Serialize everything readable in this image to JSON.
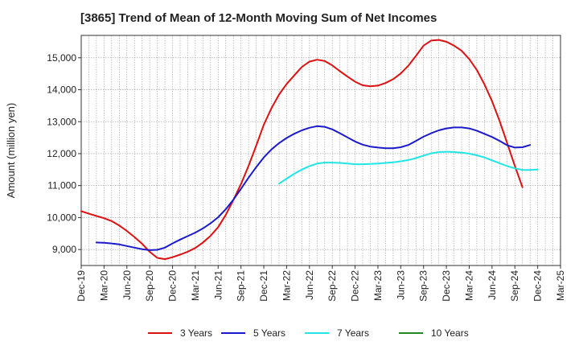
{
  "chart_data": {
    "type": "line",
    "title": "[3865]  Trend of Mean of 12-Month Moving Sum of Net Incomes",
    "ylabel": "Amount (million yen)",
    "xlabel": "",
    "ylim": [
      8500,
      15700
    ],
    "yticks": [
      9000,
      10000,
      11000,
      12000,
      13000,
      14000,
      15000
    ],
    "ytick_labels": [
      "9,000",
      "10,000",
      "11,000",
      "12,000",
      "13,000",
      "14,000",
      "15,000"
    ],
    "xticks": [
      "Dec-19",
      "Mar-20",
      "Jun-20",
      "Sep-20",
      "Dec-20",
      "Mar-21",
      "Jun-21",
      "Sep-21",
      "Dec-21",
      "Mar-22",
      "Jun-22",
      "Sep-22",
      "Dec-22",
      "Mar-23",
      "Jun-23",
      "Sep-23",
      "Dec-23",
      "Mar-24",
      "Jun-24",
      "Sep-24",
      "Dec-24",
      "Mar-25"
    ],
    "grid": true,
    "legend_position": "bottom",
    "series": [
      {
        "name": "3 Years",
        "color": "#dd1111",
        "x": [
          "2019-12",
          "2020-01",
          "2020-02",
          "2020-03",
          "2020-04",
          "2020-05",
          "2020-06",
          "2020-07",
          "2020-08",
          "2020-09",
          "2020-10",
          "2020-11",
          "2020-12",
          "2021-01",
          "2021-02",
          "2021-03",
          "2021-04",
          "2021-05",
          "2021-06",
          "2021-07",
          "2021-08",
          "2021-09",
          "2021-10",
          "2021-11",
          "2021-12",
          "2022-01",
          "2022-02",
          "2022-03",
          "2022-04",
          "2022-05",
          "2022-06",
          "2022-07",
          "2022-08",
          "2022-09",
          "2022-10",
          "2022-11",
          "2022-12",
          "2023-01",
          "2023-02",
          "2023-03",
          "2023-04",
          "2023-05",
          "2023-06",
          "2023-07",
          "2023-08",
          "2023-09",
          "2023-10",
          "2023-11",
          "2023-12",
          "2024-01",
          "2024-02",
          "2024-03",
          "2024-04",
          "2024-05",
          "2024-06",
          "2024-07",
          "2024-08",
          "2024-09",
          "2024-10",
          "2024-11",
          "2024-12"
        ],
        "values": [
          10200,
          10120,
          10050,
          9980,
          9890,
          9750,
          9580,
          9390,
          9180,
          8930,
          8740,
          8700,
          8760,
          8840,
          8930,
          9050,
          9220,
          9430,
          9700,
          10080,
          10550,
          11050,
          11620,
          12250,
          12900,
          13420,
          13850,
          14180,
          14450,
          14710,
          14880,
          14940,
          14900,
          14760,
          14580,
          14410,
          14250,
          14140,
          14110,
          14130,
          14210,
          14330,
          14510,
          14750,
          15060,
          15380,
          15540,
          15560,
          15500,
          15380,
          15220,
          14960,
          14620,
          14170,
          13640,
          13020,
          12320,
          11620,
          10950,
          null,
          null
        ]
      },
      {
        "name": "5 Years",
        "color": "#1a1acc",
        "x": [
          "2020-02",
          "2020-03",
          "2020-04",
          "2020-05",
          "2020-06",
          "2020-07",
          "2020-08",
          "2020-09",
          "2020-10",
          "2020-11",
          "2020-12",
          "2021-01",
          "2021-02",
          "2021-03",
          "2021-04",
          "2021-05",
          "2021-06",
          "2021-07",
          "2021-08",
          "2021-09",
          "2021-10",
          "2021-11",
          "2021-12",
          "2022-01",
          "2022-02",
          "2022-03",
          "2022-04",
          "2022-05",
          "2022-06",
          "2022-07",
          "2022-08",
          "2022-09",
          "2022-10",
          "2022-11",
          "2022-12",
          "2023-01",
          "2023-02",
          "2023-03",
          "2023-04",
          "2023-05",
          "2023-06",
          "2023-07",
          "2023-08",
          "2023-09",
          "2023-10",
          "2023-11",
          "2023-12",
          "2024-01",
          "2024-02",
          "2024-03",
          "2024-04",
          "2024-05",
          "2024-06",
          "2024-07",
          "2024-08",
          "2024-09",
          "2024-10",
          "2024-11",
          "2024-12"
        ],
        "values": [
          9220,
          9210,
          9190,
          9160,
          9110,
          9060,
          9010,
          8980,
          8990,
          9060,
          9190,
          9310,
          9420,
          9530,
          9660,
          9820,
          10010,
          10260,
          10560,
          10900,
          11250,
          11580,
          11880,
          12130,
          12330,
          12490,
          12620,
          12730,
          12810,
          12860,
          12840,
          12760,
          12640,
          12510,
          12380,
          12280,
          12220,
          12190,
          12170,
          12170,
          12200,
          12270,
          12400,
          12530,
          12640,
          12730,
          12790,
          12820,
          12820,
          12790,
          12720,
          12620,
          12520,
          12400,
          12260,
          12190,
          12200,
          12270,
          null
        ]
      },
      {
        "name": "7 Years",
        "color": "#22e6e6",
        "x": [
          "2022-02",
          "2022-03",
          "2022-04",
          "2022-05",
          "2022-06",
          "2022-07",
          "2022-08",
          "2022-09",
          "2022-10",
          "2022-11",
          "2022-12",
          "2023-01",
          "2023-02",
          "2023-03",
          "2023-04",
          "2023-05",
          "2023-06",
          "2023-07",
          "2023-08",
          "2023-09",
          "2023-10",
          "2023-11",
          "2023-12",
          "2024-01",
          "2024-02",
          "2024-03",
          "2024-04",
          "2024-05",
          "2024-06",
          "2024-07",
          "2024-08",
          "2024-09",
          "2024-10",
          "2024-11",
          "2024-12"
        ],
        "values": [
          11060,
          11220,
          11370,
          11500,
          11610,
          11690,
          11720,
          11720,
          11710,
          11690,
          11670,
          11670,
          11680,
          11690,
          11710,
          11730,
          11760,
          11800,
          11860,
          11940,
          12010,
          12050,
          12060,
          12050,
          12030,
          12000,
          11950,
          11880,
          11790,
          11700,
          11610,
          11540,
          11490,
          11490,
          11500
        ]
      },
      {
        "name": "10 Years",
        "color": "#228822",
        "x": [],
        "values": []
      }
    ]
  }
}
